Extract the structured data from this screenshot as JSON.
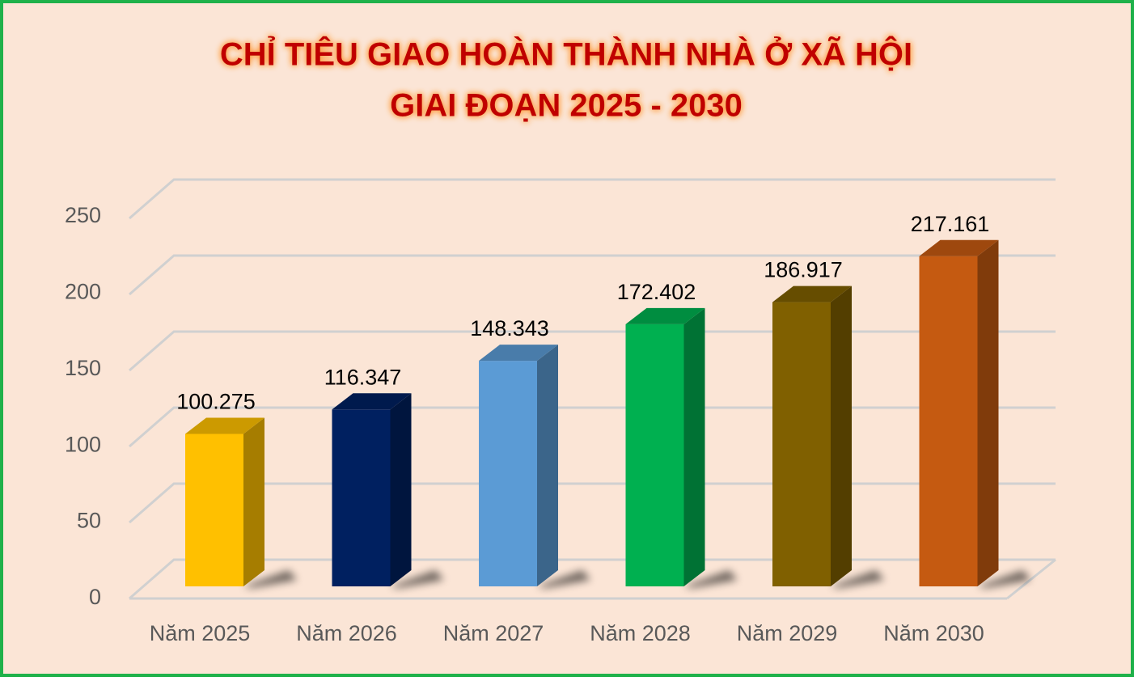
{
  "chart_data": {
    "type": "bar3d",
    "title": [
      "CHỈ TIÊU GIAO HOÀN THÀNH NHÀ Ở XÃ HỘI",
      "GIAI ĐOẠN 2025 - 2030"
    ],
    "categories": [
      "Năm 2025",
      "Năm 2026",
      "Năm 2027",
      "Năm 2028",
      "Năm 2029",
      "Năm 2030"
    ],
    "values": [
      100.275,
      116.347,
      148.343,
      172.402,
      186.917,
      217.161
    ],
    "colors": [
      "#ffc000",
      "#002060",
      "#5b9bd5",
      "#00b050",
      "#806000",
      "#c55a11"
    ],
    "ylim": [
      0,
      250
    ],
    "yticks": [
      0,
      50,
      100,
      150,
      200,
      250
    ],
    "grid": true
  }
}
